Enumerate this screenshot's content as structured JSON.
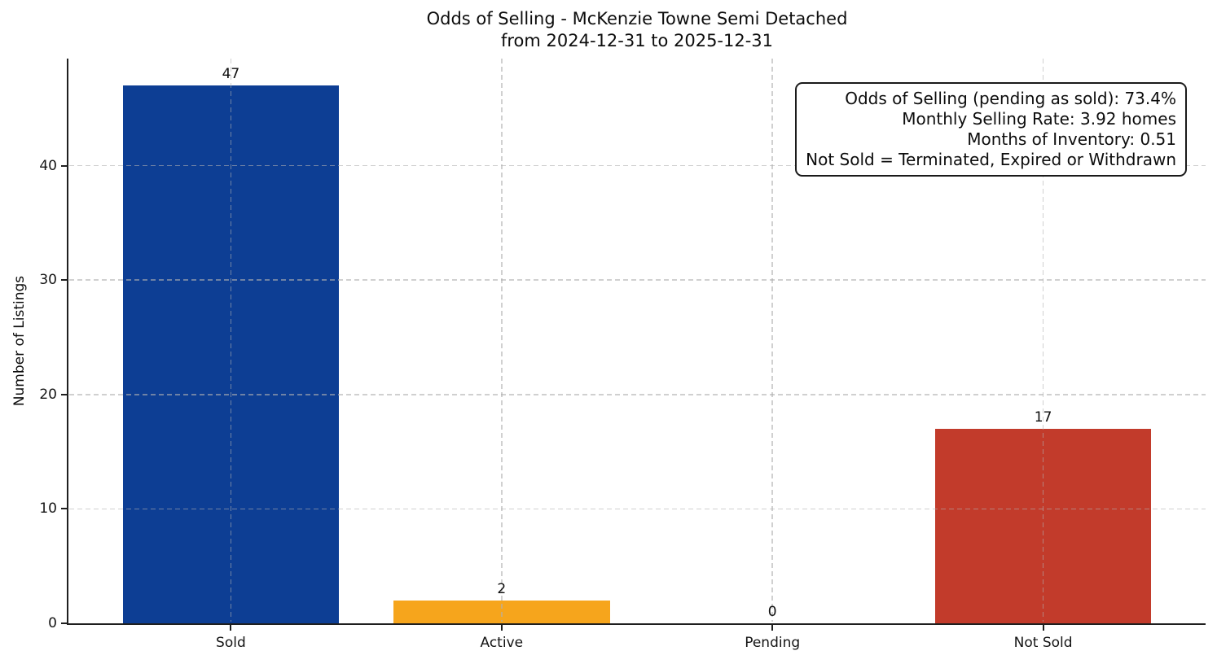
{
  "title": {
    "line1": "Odds of Selling - McKenzie Towne Semi Detached",
    "line2": "from 2024-12-31 to 2025-12-31"
  },
  "annotation": {
    "lines": [
      "Odds of Selling (pending as sold): 73.4%",
      "Monthly Selling Rate: 3.92 homes",
      "Months of Inventory: 0.51",
      "Not Sold = Terminated, Expired or Withdrawn"
    ]
  },
  "chart_data": {
    "type": "bar",
    "title": "Odds of Selling - McKenzie Towne Semi Detached from 2024-12-31 to 2025-12-31",
    "categories": [
      "Sold",
      "Active",
      "Pending",
      "Not Sold"
    ],
    "values": [
      47,
      2,
      0,
      17
    ],
    "bar_colors": [
      "#0d3e94",
      "#f6a51c",
      null,
      "#c23b2b"
    ],
    "xlabel": "",
    "ylabel": "Number of Listings",
    "yticks": [
      0,
      10,
      20,
      30,
      40
    ],
    "ylim": [
      0,
      49.35
    ],
    "grid": true,
    "grid_style": "dashed",
    "grid_color": "#b0b0b0",
    "legend": "none",
    "annotations": [
      "Odds of Selling (pending as sold): 73.4%",
      "Monthly Selling Rate: 3.92 homes",
      "Months of Inventory: 0.51",
      "Not Sold = Terminated, Expired or Withdrawn"
    ]
  },
  "colors": {
    "background": "#ffffff",
    "spine": "#1f1f1f",
    "text": "#0d0d0d",
    "annotation_border": "#1a1a1a"
  }
}
